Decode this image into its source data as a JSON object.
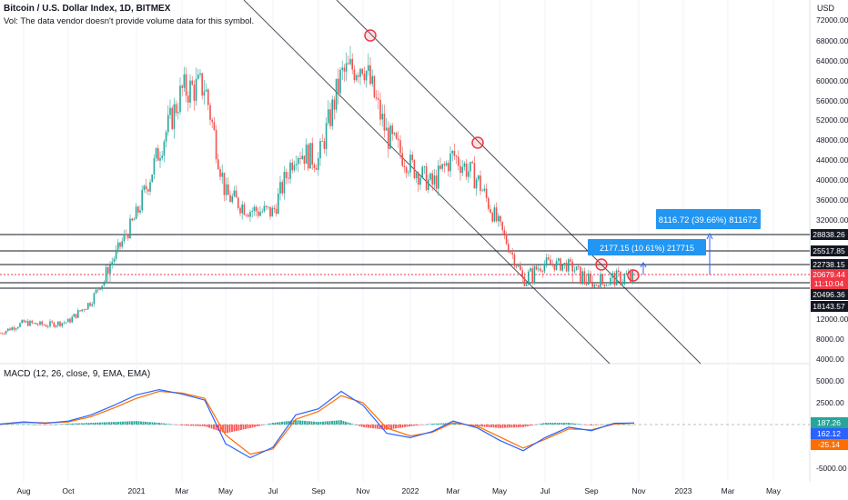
{
  "header": {
    "symbol_line": "Bitcoin / U.S. Dollar Index, 1D, BITMEX",
    "volume_note": "Vol: The data vendor doesn't provide volume data for this symbol."
  },
  "price_axis": {
    "currency": "USD",
    "ticks": [
      "72000.00",
      "68000.00",
      "64000.00",
      "60000.00",
      "56000.00",
      "52000.00",
      "48000.00",
      "44000.00",
      "40000.00",
      "36000.00",
      "32000.00",
      "12000.00",
      "8000.00",
      "4000.00"
    ]
  },
  "macd": {
    "title": "MACD (12, 26, close, 9, EMA, EMA)",
    "ticks": [
      "5000.00",
      "2500.00",
      "0.00",
      "-5000.00"
    ],
    "badges": [
      {
        "label": "187.26",
        "color": "#26a69a"
      },
      {
        "label": "162.12",
        "color": "#2962ff"
      },
      {
        "label": "-25.14",
        "color": "#ff6d00"
      }
    ]
  },
  "levels": [
    {
      "label": "28838.26",
      "value": 28838.26,
      "color": "#131722"
    },
    {
      "label": "25517.85",
      "value": 25517.85,
      "color": "#131722"
    },
    {
      "label": "22738.15",
      "value": 22738.15,
      "color": "#131722"
    },
    {
      "label": "20679.44",
      "value": 20679.44,
      "color": "#f23645"
    },
    {
      "label": "11:10:04",
      "value": null,
      "color": "#f23645"
    },
    {
      "label": "20496.36",
      "value": 20496.36,
      "color": "#131722"
    },
    {
      "label": "18143.57",
      "value": 18143.57,
      "color": "#131722"
    }
  ],
  "annotations": [
    {
      "label": "2177.15 (10.61%) 217715"
    },
    {
      "label": "8116.72 (39.66%) 811672"
    }
  ],
  "time_axis": [
    "Aug",
    "Oct",
    "2021",
    "Mar",
    "May",
    "Jul",
    "Sep",
    "Nov",
    "2022",
    "Mar",
    "May",
    "Jul",
    "Sep",
    "Nov",
    "2023",
    "Mar",
    "May"
  ],
  "chart_data": {
    "type": "line",
    "x": [
      "Jul",
      "Aug",
      "Sep",
      "Oct",
      "Nov",
      "Dec",
      "2021",
      "Feb",
      "Mar",
      "Apr",
      "May",
      "Jun",
      "Jul",
      "Aug",
      "Sep",
      "Oct",
      "Nov",
      "Dec",
      "2022",
      "Feb",
      "Mar",
      "Apr",
      "May",
      "Jun",
      "Jul",
      "Aug",
      "Sep",
      "Oct",
      "Nov"
    ],
    "series": [
      {
        "values": [
          9200,
          11300,
          10800,
          11500,
          15500,
          24000,
          33000,
          46000,
          58000,
          59000,
          37000,
          34000,
          33500,
          46000,
          44000,
          61000,
          64000,
          49000,
          43000,
          39000,
          45000,
          40000,
          30500,
          20000,
          23000,
          22500,
          19500,
          20300,
          20700
        ]
      }
    ],
    "macd": {
      "macd_line": [
        50,
        300,
        150,
        400,
        1100,
        2200,
        3400,
        4000,
        3500,
        2800,
        -2200,
        -3800,
        -2600,
        1100,
        1800,
        3800,
        2200,
        -1000,
        -1500,
        -800,
        400,
        -400,
        -1800,
        -3000,
        -1500,
        -300,
        -700,
        150,
        162.12
      ],
      "signal_line": [
        30,
        250,
        200,
        300,
        900,
        1900,
        3000,
        3800,
        3600,
        3000,
        -1200,
        -3400,
        -2800,
        600,
        1500,
        3300,
        2500,
        -400,
        -1300,
        -900,
        200,
        -200,
        -1400,
        -2700,
        -1700,
        -500,
        -600,
        50,
        187.26
      ],
      "histogram": [
        20,
        50,
        -50,
        100,
        200,
        300,
        400,
        200,
        -100,
        -200,
        -1000,
        -400,
        200,
        500,
        300,
        500,
        -300,
        -600,
        -200,
        100,
        200,
        -200,
        -400,
        -300,
        200,
        200,
        -100,
        100,
        -25.14
      ]
    }
  }
}
